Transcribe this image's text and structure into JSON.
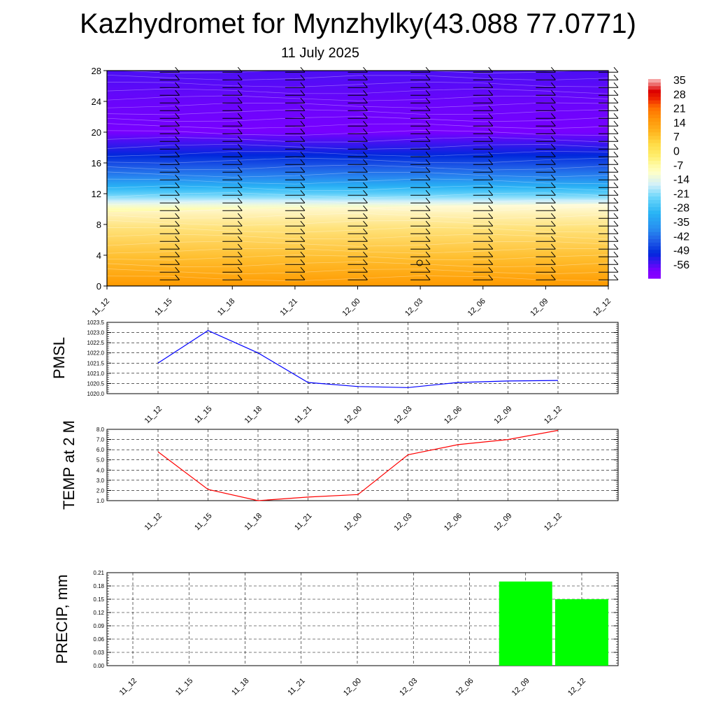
{
  "title": "Kazhydromet for Mynzhylky(43.088 77.0771)",
  "subtitle": "11 July 2025",
  "chart_data": [
    {
      "type": "heatmap",
      "title": "",
      "x_labels": [
        "11_12",
        "11_15",
        "11_18",
        "11_21",
        "12_00",
        "12_03",
        "12_06",
        "12_09",
        "12_12"
      ],
      "ylim": [
        0,
        28
      ],
      "y_ticks": [
        0,
        4,
        8,
        12,
        16,
        20,
        24,
        28
      ],
      "colorbar_labels": [
        "35",
        "28",
        "21",
        "14",
        "7",
        "0",
        "-7",
        "-14",
        "-21",
        "-28",
        "-35",
        "-42",
        "-49",
        "-56"
      ],
      "colorbar_range": [
        -60,
        38
      ],
      "freezing_level_km": [
        9.6,
        9.8,
        10.0,
        10.1,
        10.2,
        10.4,
        10.5,
        10.6,
        10.7
      ],
      "temperature_profile": [
        {
          "height_km": 0,
          "temp": 18
        },
        {
          "height_km": 4,
          "temp": 10
        },
        {
          "height_km": 8,
          "temp": 2
        },
        {
          "height_km": 10,
          "temp": -6
        },
        {
          "height_km": 12,
          "temp": -22
        },
        {
          "height_km": 14,
          "temp": -36
        },
        {
          "height_km": 17,
          "temp": -48
        },
        {
          "height_km": 20,
          "temp": -56
        },
        {
          "height_km": 24,
          "temp": -55
        },
        {
          "height_km": 28,
          "temp": -53
        }
      ]
    },
    {
      "type": "line",
      "ylabel": "PMSL",
      "x": [
        "11_12",
        "11_15",
        "11_18",
        "11_21",
        "12_00",
        "12_03",
        "12_06",
        "12_09",
        "12_12"
      ],
      "series": [
        {
          "values": [
            1021.5,
            1023.1,
            1022.0,
            1020.55,
            1020.35,
            1020.3,
            1020.55,
            1020.62,
            1020.65
          ]
        }
      ],
      "ylim": [
        1020.0,
        1023.5
      ],
      "y_ticks": [
        "1020.0",
        "1020.5",
        "1021.0",
        "1021.5",
        "1022.0",
        "1022.5",
        "1023.0",
        "1023.5"
      ],
      "line_color": "#0000ff",
      "grid": true
    },
    {
      "type": "line",
      "ylabel": "TEMP at 2 M",
      "x": [
        "11_12",
        "11_15",
        "11_18",
        "11_21",
        "12_00",
        "12_03",
        "12_06",
        "12_09",
        "12_12"
      ],
      "series": [
        {
          "values": [
            5.8,
            2.1,
            1.0,
            1.35,
            1.6,
            5.5,
            6.5,
            7.0,
            7.9
          ]
        }
      ],
      "ylim": [
        1.0,
        8.0
      ],
      "y_ticks": [
        "1.0",
        "2.0",
        "3.0",
        "4.0",
        "5.0",
        "6.0",
        "7.0",
        "8.0"
      ],
      "line_color": "#ff0000",
      "grid": true
    },
    {
      "type": "bar",
      "ylabel": "PRECIP, mm",
      "categories": [
        "11_12",
        "11_15",
        "11_18",
        "11_21",
        "12_00",
        "12_03",
        "12_06",
        "12_09",
        "12_12"
      ],
      "values": [
        0,
        0,
        0,
        0,
        0,
        0,
        0,
        0.19,
        0.15
      ],
      "ylim": [
        0,
        0.21
      ],
      "y_ticks": [
        "0.00",
        "0.03",
        "0.06",
        "0.09",
        "0.12",
        "0.15",
        "0.18",
        "0.21"
      ],
      "bar_color": "#00ff00",
      "grid": true
    }
  ]
}
